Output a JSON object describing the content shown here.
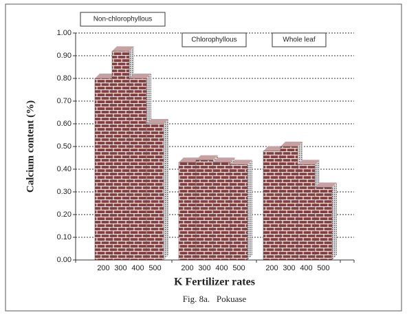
{
  "chart_data": {
    "type": "bar",
    "y_label": "Calcium content (%)",
    "x_label": "K Fertilizer rates",
    "caption": "Fig. 8a.   Pokuase",
    "categories": [
      "200",
      "300",
      "400",
      "500"
    ],
    "series": [
      {
        "name": "Non-chlorophyllous",
        "color": "#8a3b3b",
        "values": [
          0.8,
          0.92,
          0.8,
          0.6
        ]
      },
      {
        "name": "Chlorophyllous",
        "color": "#8a3b3b",
        "values": [
          0.43,
          0.44,
          0.43,
          0.42
        ]
      },
      {
        "name": "Whole leaf",
        "color": "#8a3b3b",
        "values": [
          0.48,
          0.5,
          0.42,
          0.32
        ]
      }
    ],
    "ylim": [
      0,
      1
    ],
    "yticks": [
      {
        "value": 0,
        "label": "0.00"
      },
      {
        "value": 0.1,
        "label": "0.10"
      },
      {
        "value": 0.2,
        "label": "0.20"
      },
      {
        "value": 0.3,
        "label": "0.30"
      },
      {
        "value": 0.4,
        "label": "0.40"
      },
      {
        "value": 0.5,
        "label": "0.50"
      },
      {
        "value": 0.6,
        "label": "0.60"
      },
      {
        "value": 0.7,
        "label": "0.70"
      },
      {
        "value": 0.8,
        "label": "0.80"
      },
      {
        "value": 0.9,
        "label": "0.90"
      },
      {
        "value": 1,
        "label": "1.00"
      }
    ],
    "grid": true
  }
}
